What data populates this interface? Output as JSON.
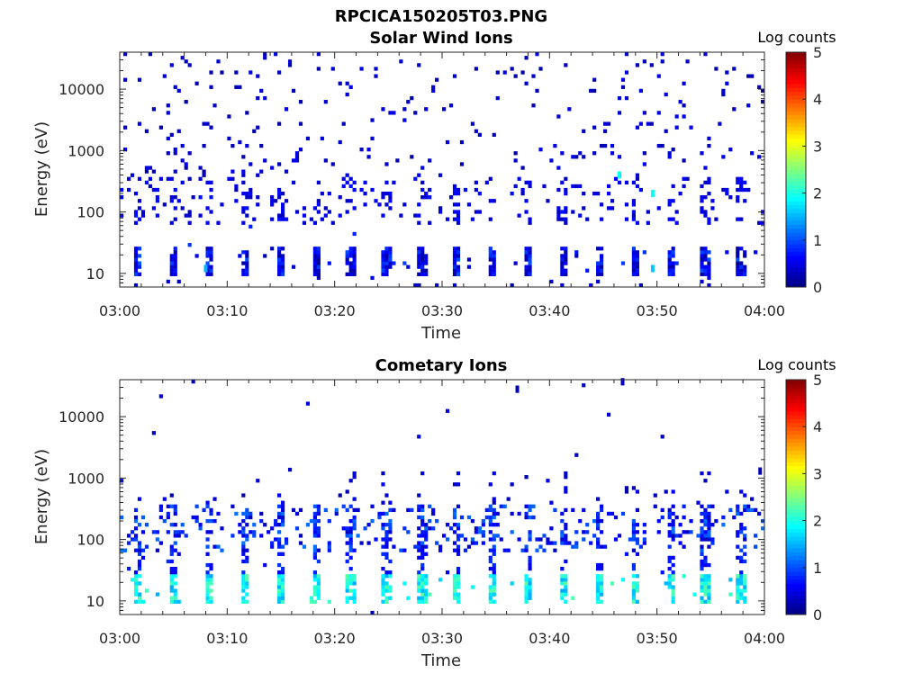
{
  "figure": {
    "title": "RPCICA150205T03.PNG"
  },
  "chart_data": [
    {
      "type": "heatmap",
      "title": "Solar Wind Ions",
      "xlabel": "Time",
      "ylabel": "Energy (eV)",
      "x_ticks": [
        "03:00",
        "03:10",
        "03:20",
        "03:30",
        "03:40",
        "03:50",
        "04:00"
      ],
      "x_range_minutes": [
        0,
        60
      ],
      "y_scale": "log",
      "y_range": [
        6,
        40000
      ],
      "y_ticks": [
        10,
        100,
        1000,
        10000
      ],
      "y_tick_labels": [
        "10",
        "100",
        "1000",
        "10000"
      ],
      "colorbar": {
        "label": "Log counts",
        "range": [
          0,
          5
        ],
        "ticks": [
          "0",
          "1",
          "2",
          "3",
          "4",
          "5"
        ],
        "colormap": "jet"
      },
      "low_energy_bands": {
        "energy_range": [
          8,
          25
        ],
        "period_minutes": 3.3,
        "typical_log_counts": 0.4
      },
      "features": [
        {
          "band": "low",
          "energy_range": [
            8,
            25
          ],
          "log_counts_range": [
            0.3,
            1.8
          ],
          "pattern": "periodic bursts ~every 3.3 min"
        },
        {
          "band": "mid",
          "energy_range": [
            60,
            300
          ],
          "log_counts_range": [
            0.2,
            0.8
          ],
          "pattern": "scattered"
        },
        {
          "band": "high",
          "energy_range": [
            300,
            40000
          ],
          "log_counts_range": [
            0.1,
            0.6
          ],
          "pattern": "sparse"
        }
      ],
      "highlights": [
        {
          "time_min": 46.5,
          "energy": 400,
          "log_counts": 1.9
        },
        {
          "time_min": 49.6,
          "energy": 200,
          "log_counts": 1.9
        },
        {
          "time_min": 49.6,
          "energy": 12,
          "log_counts": 1.6
        },
        {
          "time_min": 8,
          "energy": 12,
          "log_counts": 1.5
        }
      ]
    },
    {
      "type": "heatmap",
      "title": "Cometary Ions",
      "xlabel": "Time",
      "ylabel": "Energy (eV)",
      "x_ticks": [
        "03:00",
        "03:10",
        "03:20",
        "03:30",
        "03:40",
        "03:50",
        "04:00"
      ],
      "x_range_minutes": [
        0,
        60
      ],
      "y_scale": "log",
      "y_range": [
        6,
        40000
      ],
      "y_ticks": [
        10,
        100,
        1000,
        10000
      ],
      "y_tick_labels": [
        "10",
        "100",
        "1000",
        "10000"
      ],
      "colorbar": {
        "label": "Log counts",
        "range": [
          0,
          5
        ],
        "ticks": [
          "0",
          "1",
          "2",
          "3",
          "4",
          "5"
        ],
        "colormap": "jet"
      },
      "low_energy_bands": {
        "energy_range": [
          8,
          25
        ],
        "period_minutes": 3.3,
        "typical_log_counts": 1.7
      },
      "features": [
        {
          "band": "low",
          "energy_range": [
            8,
            25
          ],
          "log_counts_range": [
            1.0,
            2.4
          ],
          "pattern": "periodic bright bursts ~every 3.3 min"
        },
        {
          "band": "mid",
          "energy_range": [
            30,
            600
          ],
          "log_counts_range": [
            0.2,
            1.2
          ],
          "pattern": "dense columns at burst times"
        },
        {
          "band": "high",
          "energy_range": [
            600,
            40000
          ],
          "log_counts_range": [
            0.1,
            0.5
          ],
          "pattern": "very sparse"
        }
      ],
      "highlights": [
        {
          "time_min": 37,
          "energy": 28000,
          "log_counts": 0.3
        },
        {
          "time_min": 46.8,
          "energy": 37000,
          "log_counts": 0.3
        },
        {
          "time_min": 59.6,
          "energy": 1300,
          "log_counts": 0.3
        }
      ]
    }
  ]
}
